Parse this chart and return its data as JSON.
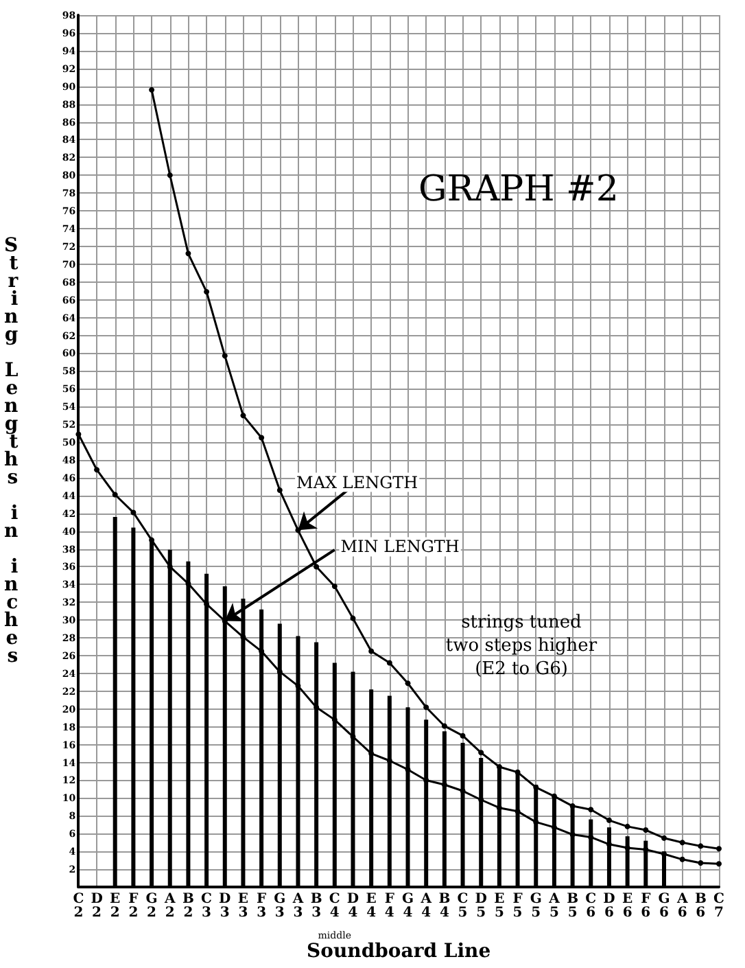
{
  "chart_data": {
    "type": "bar",
    "title": "GRAPH #2",
    "xlabel": "Soundboard Line",
    "ylabel": "String Lengths in inches",
    "categories": [
      "C2",
      "D2",
      "E2",
      "F2",
      "G2",
      "A2",
      "B2",
      "C3",
      "D3",
      "E3",
      "F3",
      "G3",
      "A3",
      "B3",
      "C4",
      "D4",
      "E4",
      "F4",
      "G4",
      "A4",
      "B4",
      "C5",
      "D5",
      "E5",
      "F5",
      "G5",
      "A5",
      "B5",
      "C6",
      "D6",
      "E6",
      "F6",
      "G6",
      "A6",
      "B6",
      "C7"
    ],
    "series": [
      {
        "color": "#000000",
        "values": [
          null,
          null,
          41.6,
          40.4,
          39,
          37.9,
          36.6,
          35.2,
          33.8,
          32.4,
          31.2,
          29.6,
          28.2,
          27.5,
          25.2,
          24.2,
          22.2,
          21.5,
          20.2,
          18.8,
          17.5,
          16.2,
          14.5,
          13.5,
          13,
          11.5,
          10.2,
          9,
          7.6,
          6.7,
          5.7,
          5.2,
          4,
          null,
          null,
          null
        ]
      },
      {
        "type": "line",
        "color": "#000000",
        "values": [
          null,
          null,
          null,
          null,
          89.6,
          80,
          71.2,
          66.9,
          59.7,
          53,
          50.5,
          44.6,
          40.1,
          36,
          33.8,
          30.2,
          26.5,
          25.2,
          22.9,
          20.2,
          18.1,
          17,
          15.1,
          13.5,
          12.9,
          11.2,
          10.2,
          9.1,
          8.7,
          7.5,
          6.8,
          6.4,
          5.5,
          5,
          4.6,
          4.3
        ]
      },
      {
        "type": "line",
        "color": "#000000",
        "values": [
          50.9,
          46.9,
          44.1,
          42.1,
          39,
          36,
          34.1,
          31.8,
          29.9,
          28.1,
          26.5,
          24.2,
          22.6,
          20.2,
          18.8,
          16.9,
          15,
          14.2,
          13.2,
          12,
          11.5,
          10.8,
          9.8,
          8.9,
          8.5,
          7.3,
          6.7,
          5.9,
          5.6,
          4.8,
          4.4,
          4.2,
          3.7,
          3.1,
          2.7,
          2.6
        ]
      }
    ],
    "ylim": [
      0,
      98
    ],
    "yticks": [
      2,
      4,
      6,
      8,
      10,
      12,
      14,
      16,
      18,
      20,
      22,
      24,
      26,
      28,
      30,
      32,
      34,
      36,
      38,
      40,
      42,
      44,
      46,
      48,
      50,
      52,
      54,
      56,
      58,
      60,
      62,
      64,
      66,
      68,
      70,
      72,
      74,
      76,
      78,
      80,
      82,
      84,
      86,
      88,
      90,
      92,
      94,
      96,
      98
    ],
    "grid": true,
    "marker": "circle",
    "line_style": "solid",
    "annotations": [
      {
        "text": "MAX LENGTH",
        "x": "A3",
        "y": 40.1
      },
      {
        "text": "MIN LENGTH",
        "x": "D3",
        "y": 29.9
      },
      "strings tuned\ntwo steps higher\n(E2 to G6)",
      "middle"
    ]
  }
}
